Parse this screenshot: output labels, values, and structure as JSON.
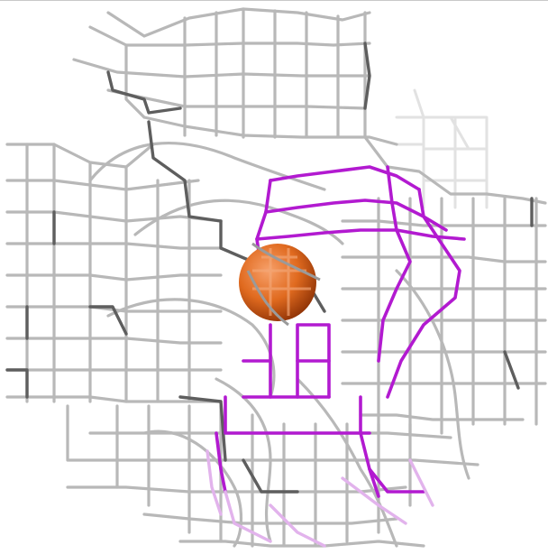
{
  "viewer": {
    "background": "#ffffff",
    "mesh_colors": {
      "grey_light": "#d4d4d4",
      "grey": "#b0b0b0",
      "grey_dark": "#5a5a5a",
      "grey_faint": "#ececec",
      "magenta": "#b21ad0",
      "magenta_faint": "#e7b8f0"
    },
    "sphere_colors": {
      "highlight": "#f28a4a",
      "base": "#e06a1f",
      "shadow": "#9a3a08"
    }
  }
}
